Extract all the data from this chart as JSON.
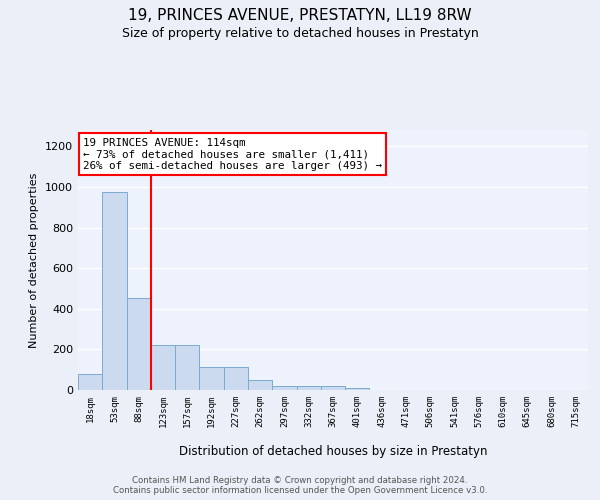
{
  "title": "19, PRINCES AVENUE, PRESTATYN, LL19 8RW",
  "subtitle": "Size of property relative to detached houses in Prestatyn",
  "xlabel": "Distribution of detached houses by size in Prestatyn",
  "ylabel": "Number of detached properties",
  "bin_labels": [
    "18sqm",
    "53sqm",
    "88sqm",
    "123sqm",
    "157sqm",
    "192sqm",
    "227sqm",
    "262sqm",
    "297sqm",
    "332sqm",
    "367sqm",
    "401sqm",
    "436sqm",
    "471sqm",
    "506sqm",
    "541sqm",
    "576sqm",
    "610sqm",
    "645sqm",
    "680sqm",
    "715sqm"
  ],
  "bar_heights": [
    80,
    975,
    455,
    220,
    220,
    115,
    115,
    50,
    22,
    22,
    18,
    10,
    0,
    0,
    0,
    0,
    0,
    0,
    0,
    0,
    0
  ],
  "bar_color": "#ccdaf0",
  "bar_edge_color": "#7aaad0",
  "red_line_x": 2.5,
  "annotation_text": "19 PRINCES AVENUE: 114sqm\n← 73% of detached houses are smaller (1,411)\n26% of semi-detached houses are larger (493) →",
  "ylim": [
    0,
    1280
  ],
  "yticks": [
    0,
    200,
    400,
    600,
    800,
    1000,
    1200
  ],
  "footer": "Contains HM Land Registry data © Crown copyright and database right 2024.\nContains public sector information licensed under the Open Government Licence v3.0.",
  "bg_color": "#eaeff8",
  "plot_bg_color": "#eef2fc"
}
